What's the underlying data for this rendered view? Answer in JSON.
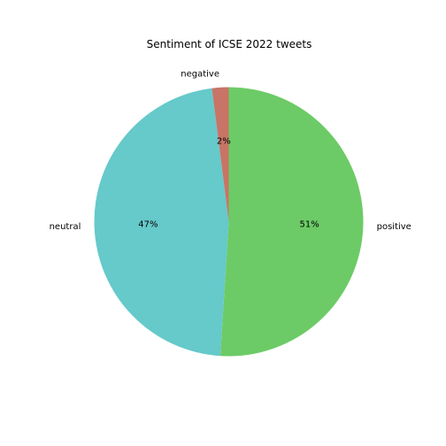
{
  "chart_data": {
    "type": "pie",
    "title": "Sentiment of ICSE 2022 tweets",
    "start_angle_deg": 90,
    "direction": "clockwise",
    "slices": [
      {
        "label": "positive",
        "value": 51,
        "pct_label": "51%",
        "color": "#6ccb66"
      },
      {
        "label": "neutral",
        "value": 47,
        "pct_label": "47%",
        "color": "#66c9ca"
      },
      {
        "label": "negative",
        "value": 2,
        "pct_label": "2%",
        "color": "#c87466"
      }
    ]
  }
}
